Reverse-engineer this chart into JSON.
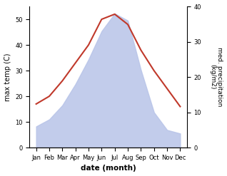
{
  "months": [
    "Jan",
    "Feb",
    "Mar",
    "Apr",
    "May",
    "Jun",
    "Jul",
    "Aug",
    "Sep",
    "Oct",
    "Nov",
    "Dec"
  ],
  "temperature": [
    17,
    20,
    26,
    33,
    40,
    50,
    52,
    48,
    38,
    30,
    23,
    16
  ],
  "precipitation": [
    6,
    8,
    12,
    18,
    25,
    33,
    38,
    36,
    22,
    10,
    5,
    4
  ],
  "temp_color": "#c0392b",
  "precip_fill_color": "#b8c4e8",
  "temp_ylim": [
    0,
    55
  ],
  "precip_ylim": [
    0,
    40
  ],
  "temp_yticks": [
    0,
    10,
    20,
    30,
    40,
    50
  ],
  "precip_yticks": [
    0,
    10,
    20,
    30,
    40
  ],
  "xlabel": "date (month)",
  "ylabel_left": "max temp (C)",
  "ylabel_right": "med. precipitation\n(kg/m2)",
  "fig_width": 3.18,
  "fig_height": 2.47,
  "dpi": 100
}
